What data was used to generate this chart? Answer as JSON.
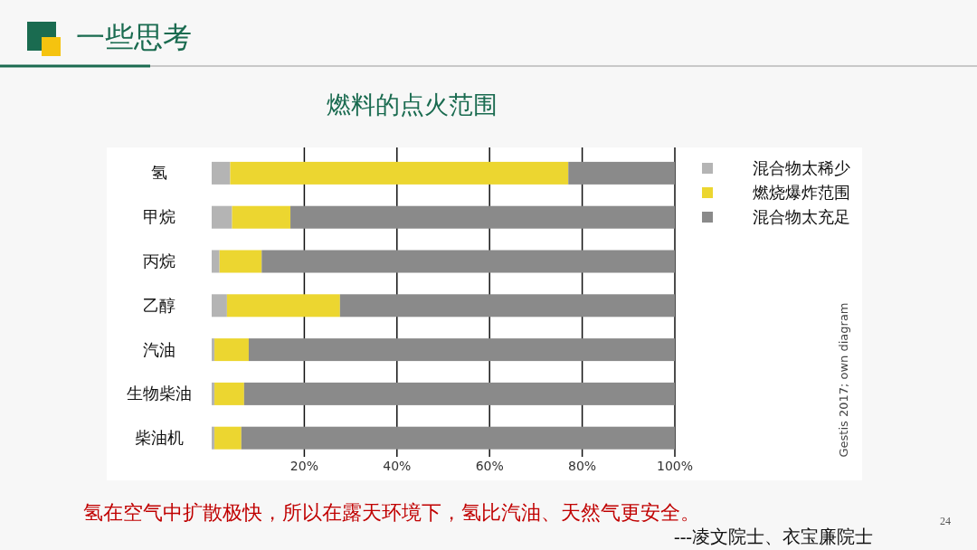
{
  "chart_data": {
    "type": "bar",
    "orientation": "horizontal",
    "stacked": true,
    "title": "燃料的点火范围",
    "categories": [
      "氢",
      "甲烷",
      "丙烷",
      "乙醇",
      "汽油",
      "生物柴油",
      "柴油机"
    ],
    "series": [
      {
        "name": "混合物太稀少",
        "color": "#b4b4b4",
        "values": [
          4,
          4.4,
          1.7,
          3.3,
          0.6,
          0.6,
          0.6
        ]
      },
      {
        "name": "燃烧爆炸范围",
        "color": "#ecd630",
        "values": [
          73,
          12.6,
          9.1,
          24.4,
          7.4,
          6.4,
          5.8
        ]
      },
      {
        "name": "混合物太充足",
        "color": "#8a8a8a",
        "values": [
          23,
          83,
          89.2,
          72.3,
          92,
          93,
          93.6
        ]
      }
    ],
    "xlim": [
      0,
      100
    ],
    "xticks": [
      {
        "value": 20,
        "label": "20%"
      },
      {
        "value": 40,
        "label": "40%"
      },
      {
        "value": 60,
        "label": "60%"
      },
      {
        "value": 80,
        "label": "80%"
      },
      {
        "value": 100,
        "label": "100%"
      }
    ],
    "grid": "x",
    "legend": "right",
    "annotations": [
      "一些思考",
      "Gestis 2017; own diagram",
      "氢在空气中扩散极快，所以在露天环境下，氢比汽油、天然气更安全。",
      "---凌文院士、衣宝廉院士",
      "24"
    ]
  }
}
